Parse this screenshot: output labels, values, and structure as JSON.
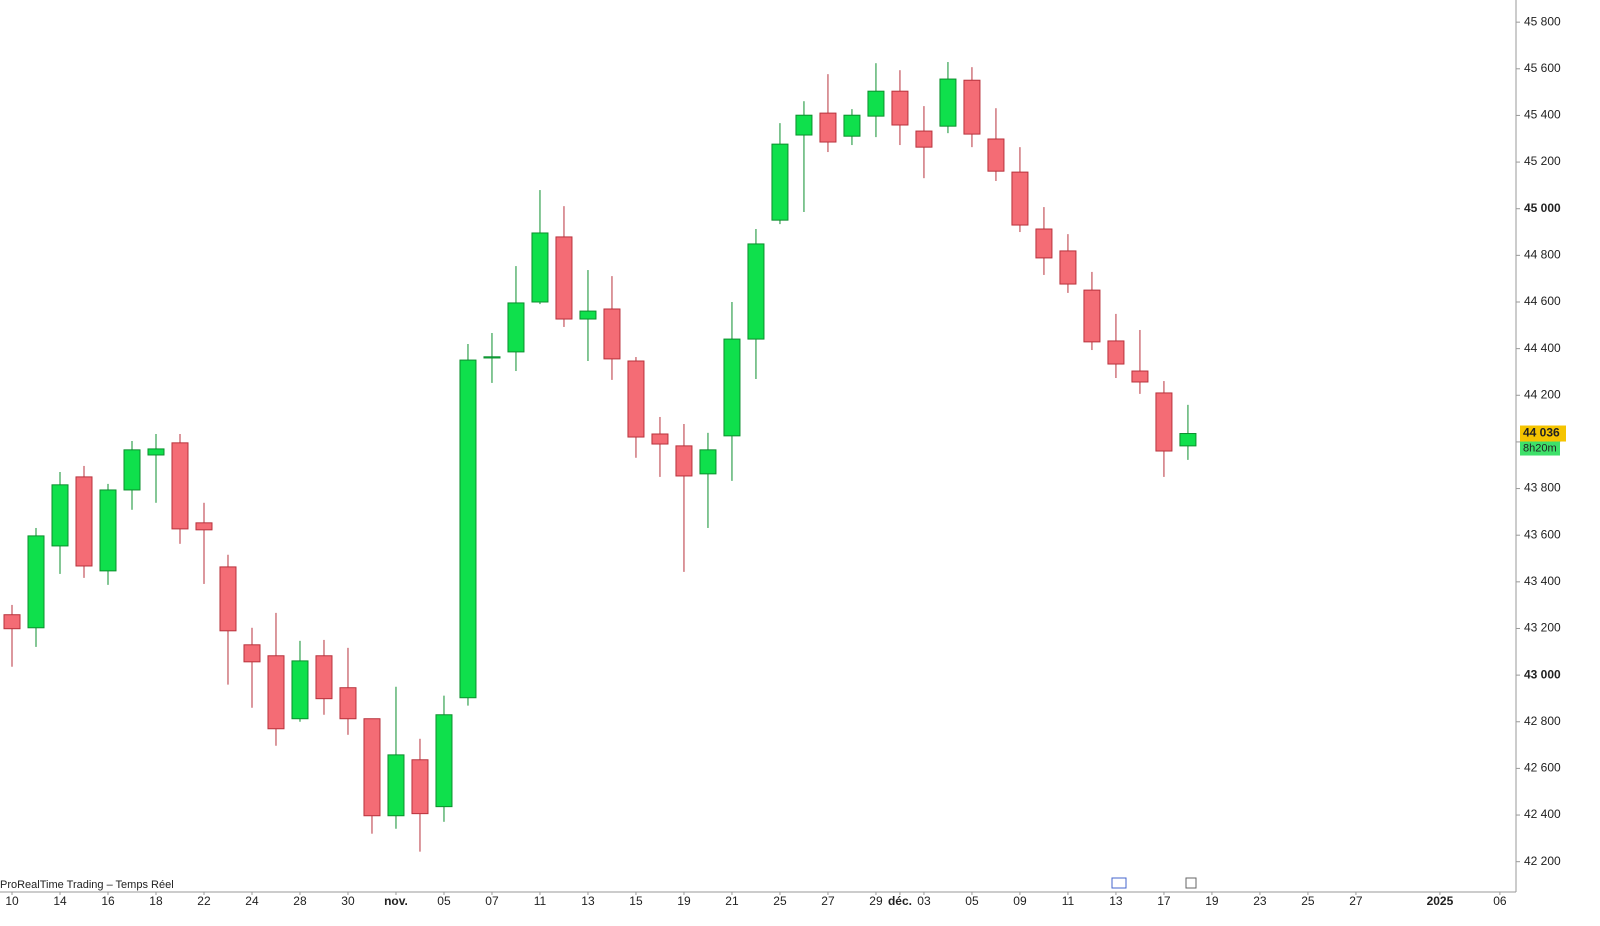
{
  "chart_data": {
    "type": "candlestick",
    "source": "ProRealTime Trading – Temps Réel",
    "x": [
      0,
      1,
      2,
      3,
      4,
      5,
      6,
      7,
      8,
      9,
      10,
      11,
      12,
      13,
      14,
      15,
      16,
      17,
      18,
      19,
      20,
      21,
      22,
      23,
      24,
      25,
      26,
      27,
      28,
      29,
      30,
      31,
      32,
      33,
      34,
      35,
      36,
      37,
      38,
      39,
      40,
      41,
      42,
      43,
      44,
      45,
      46,
      47,
      48,
      49
    ],
    "open": [
      43259,
      43203,
      43554,
      43850,
      43447,
      43794,
      43944,
      43996,
      43653,
      43464,
      43130,
      43083,
      42813,
      43083,
      42946,
      42813,
      42397,
      42637,
      42436,
      42903,
      44360,
      44386,
      44600,
      44879,
      44527,
      44570,
      44347,
      44034,
      43983,
      43863,
      44026,
      44441,
      44951,
      45316,
      45410,
      45311,
      45397,
      45504,
      45333,
      45354,
      45551,
      45299,
      45157,
      44913,
      44819,
      44651,
      44433,
      44304,
      44210,
      43983
    ],
    "high": [
      43301,
      43631,
      43871,
      43897,
      43820,
      44004,
      44034,
      44034,
      43739,
      43516,
      43203,
      43267,
      43147,
      43151,
      43117,
      42813,
      42950,
      42727,
      42912,
      44420,
      44467,
      44754,
      45080,
      45011,
      44737,
      44711,
      44364,
      44107,
      44077,
      44039,
      44600,
      44913,
      45367,
      45461,
      45577,
      45427,
      45624,
      45594,
      45440,
      45629,
      45607,
      45431,
      45264,
      45007,
      44891,
      44729,
      44549,
      44480,
      44261,
      44159
    ],
    "low": [
      43036,
      43121,
      43434,
      43417,
      43387,
      43709,
      43739,
      43563,
      43391,
      42959,
      42860,
      42697,
      42800,
      42830,
      42744,
      42320,
      42341,
      42243,
      42371,
      42869,
      44253,
      44304,
      44591,
      44493,
      44347,
      44266,
      43932,
      43850,
      43443,
      43631,
      43833,
      44270,
      44934,
      44986,
      45243,
      45273,
      45307,
      45273,
      45131,
      45324,
      45264,
      45119,
      44900,
      44716,
      44639,
      44394,
      44274,
      44206,
      43850,
      43923
    ],
    "close": [
      43199,
      43597,
      43816,
      43468,
      43794,
      43966,
      43970,
      43627,
      43623,
      43190,
      43057,
      42770,
      43061,
      42899,
      42813,
      42397,
      42658,
      42406,
      42830,
      44351,
      44365,
      44596,
      44896,
      44527,
      44561,
      44356,
      44021,
      43991,
      43854,
      43966,
      44441,
      44849,
      45277,
      45401,
      45286,
      45401,
      45504,
      45359,
      45264,
      45556,
      45320,
      45161,
      44930,
      44789,
      44677,
      44429,
      44334,
      44257,
      43961,
      44036
    ],
    "up_color": "#0fe04c",
    "down_color": "#f46c75",
    "up_border": "#0b8f2d",
    "down_border": "#b8323c",
    "xlim": [
      -0.5,
      62.67
    ],
    "xticks": [
      {
        "value": 0,
        "label": "10"
      },
      {
        "value": 2,
        "label": "14"
      },
      {
        "value": 4,
        "label": "16"
      },
      {
        "value": 6,
        "label": "18"
      },
      {
        "value": 8,
        "label": "22"
      },
      {
        "value": 10,
        "label": "24"
      },
      {
        "value": 12,
        "label": "28"
      },
      {
        "value": 14,
        "label": "30"
      },
      {
        "value": 16,
        "label": "nov.",
        "bold": true
      },
      {
        "value": 18,
        "label": "05"
      },
      {
        "value": 20,
        "label": "07"
      },
      {
        "value": 22,
        "label": "11"
      },
      {
        "value": 24,
        "label": "13"
      },
      {
        "value": 26,
        "label": "15"
      },
      {
        "value": 28,
        "label": "19"
      },
      {
        "value": 30,
        "label": "21"
      },
      {
        "value": 32,
        "label": "25"
      },
      {
        "value": 34,
        "label": "27"
      },
      {
        "value": 36,
        "label": "29"
      },
      {
        "value": 37,
        "label": "déc.",
        "bold": true
      },
      {
        "value": 38,
        "label": "03"
      },
      {
        "value": 40,
        "label": "05"
      },
      {
        "value": 42,
        "label": "09"
      },
      {
        "value": 44,
        "label": "11"
      },
      {
        "value": 46,
        "label": "13"
      },
      {
        "value": 48,
        "label": "17"
      },
      {
        "value": 50,
        "label": "19"
      },
      {
        "value": 52,
        "label": "23"
      },
      {
        "value": 54,
        "label": "25"
      },
      {
        "value": 56,
        "label": "27"
      },
      {
        "value": 59.5,
        "label": "2025",
        "bold": true
      },
      {
        "value": 62,
        "label": "06"
      }
    ],
    "ylim": [
      42070,
      45895
    ],
    "yticks": [
      {
        "value": 42200,
        "label": "42 200"
      },
      {
        "value": 42400,
        "label": "42 400"
      },
      {
        "value": 42600,
        "label": "42 600"
      },
      {
        "value": 42800,
        "label": "42 800"
      },
      {
        "value": 43000,
        "label": "43 000",
        "bold": true
      },
      {
        "value": 43200,
        "label": "43 200"
      },
      {
        "value": 43400,
        "label": "43 400"
      },
      {
        "value": 43600,
        "label": "43 600"
      },
      {
        "value": 43800,
        "label": "43 800"
      },
      {
        "value": 44000,
        "label": "44 000"
      },
      {
        "value": 44200,
        "label": "44 200"
      },
      {
        "value": 44400,
        "label": "44 400"
      },
      {
        "value": 44600,
        "label": "44 600"
      },
      {
        "value": 44800,
        "label": "44 800"
      },
      {
        "value": 45000,
        "label": "45 000",
        "bold": true
      },
      {
        "value": 45200,
        "label": "45 200"
      },
      {
        "value": 45400,
        "label": "45 400"
      },
      {
        "value": 45600,
        "label": "45 600"
      },
      {
        "value": 45800,
        "label": "45 800"
      }
    ],
    "last_price": {
      "value": 44036,
      "label": "44 036"
    },
    "countdown": "8h20m"
  }
}
